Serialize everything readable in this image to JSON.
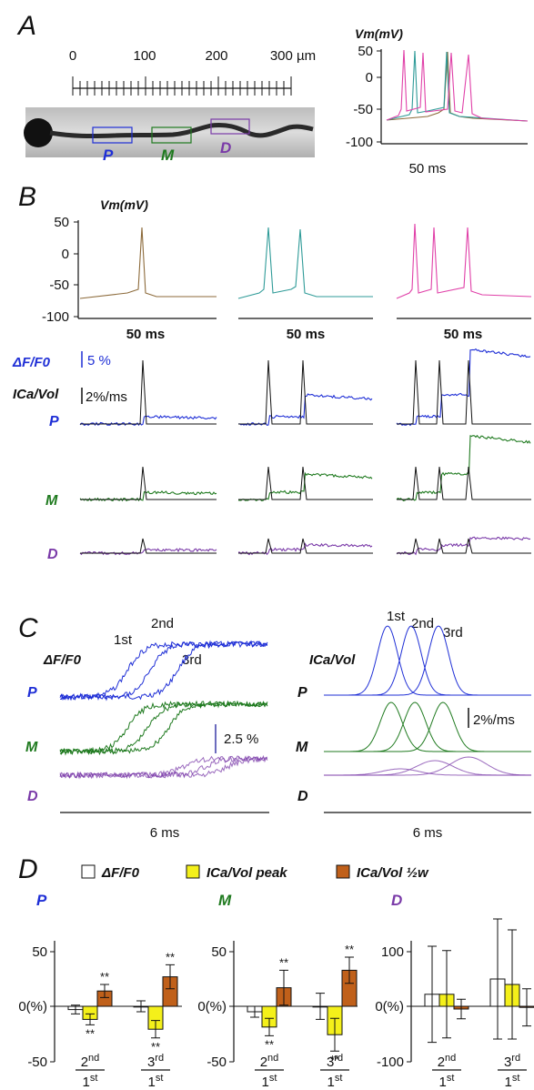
{
  "panels": {
    "A": "A",
    "B": "B",
    "C": "C",
    "D": "D"
  },
  "colors": {
    "P": "#1f2fd6",
    "M": "#1f7a1f",
    "D": "#7a3aa8",
    "trace1": "#8c6a3a",
    "trace2": "#2f9b98",
    "trace3": "#e040a8",
    "bar_dff": "#ffffff",
    "bar_peak": "#f4f01a",
    "bar_hw": "#c0601a"
  },
  "panelA": {
    "ruler_ticks": [
      "0",
      "100",
      "200",
      "300 µm"
    ],
    "region_labels": [
      "P",
      "M",
      "D"
    ],
    "vm_label": "Vm(mV)",
    "vm_ticks": [
      "50",
      "0",
      "-50",
      "-100"
    ],
    "time_scale": "50 ms"
  },
  "panelB": {
    "vm_label": "Vm(mV)",
    "vm_ticks": [
      "50",
      "0",
      "-50",
      "-100"
    ],
    "time_scales": [
      "50 ms",
      "50 ms",
      "50 ms"
    ],
    "dff_label": "ΔF/F0",
    "dff_scale": "5 %",
    "ica_label": "ICa/Vol",
    "ica_scale": "2%/ms",
    "rows": [
      "P",
      "M",
      "D"
    ]
  },
  "panelC": {
    "dff_label": "ΔF/F0",
    "ica_label": "ICa/Vol",
    "rows": [
      "P",
      "M",
      "D"
    ],
    "order": [
      "1st",
      "2nd",
      "3rd"
    ],
    "dff_scale": "2.5 %",
    "ica_scale": "2%/ms",
    "time_scales": [
      "6 ms",
      "6 ms"
    ]
  },
  "panelD": {
    "legend": [
      "ΔF/F0",
      "ICa/Vol peak",
      "ICa/Vol ½w"
    ],
    "y_unit": "0(%)",
    "significance": "**",
    "x_labels": [
      "2nd/1st",
      "3rd/1st"
    ],
    "subplots": [
      {
        "name": "P",
        "y_ticks": [
          "50",
          "-50"
        ],
        "ylim": [
          -50,
          50
        ],
        "groups": [
          {
            "label": "2nd/1st",
            "dff": -3,
            "dff_err": 4,
            "peak": -12,
            "peak_err": 5,
            "hw": 14,
            "hw_err": 6
          },
          {
            "label": "3rd/1st",
            "dff": 0,
            "dff_err": 5,
            "peak": -21,
            "peak_err": 8,
            "hw": 27,
            "hw_err": 11
          }
        ]
      },
      {
        "name": "M",
        "y_ticks": [
          "50",
          "-50"
        ],
        "ylim": [
          -50,
          50
        ],
        "groups": [
          {
            "label": "2nd/1st",
            "dff": -5,
            "dff_err": 5,
            "peak": -19,
            "peak_err": 8,
            "hw": 17,
            "hw_err": 16
          },
          {
            "label": "3rd/1st",
            "dff": 0,
            "dff_err": 12,
            "peak": -26,
            "peak_err": 15,
            "hw": 33,
            "hw_err": 12
          }
        ]
      },
      {
        "name": "D",
        "y_ticks": [
          "100",
          "-100"
        ],
        "ylim": [
          -100,
          100
        ],
        "groups": [
          {
            "label": "2nd/1st",
            "dff": 22,
            "dff_err": 88,
            "peak": 22,
            "peak_err": 80,
            "hw": -5,
            "hw_err": 18
          },
          {
            "label": "3rd/1st",
            "dff": 50,
            "dff_err": 110,
            "peak": 40,
            "peak_err": 100,
            "hw": -2,
            "hw_err": 34
          }
        ]
      }
    ]
  }
}
